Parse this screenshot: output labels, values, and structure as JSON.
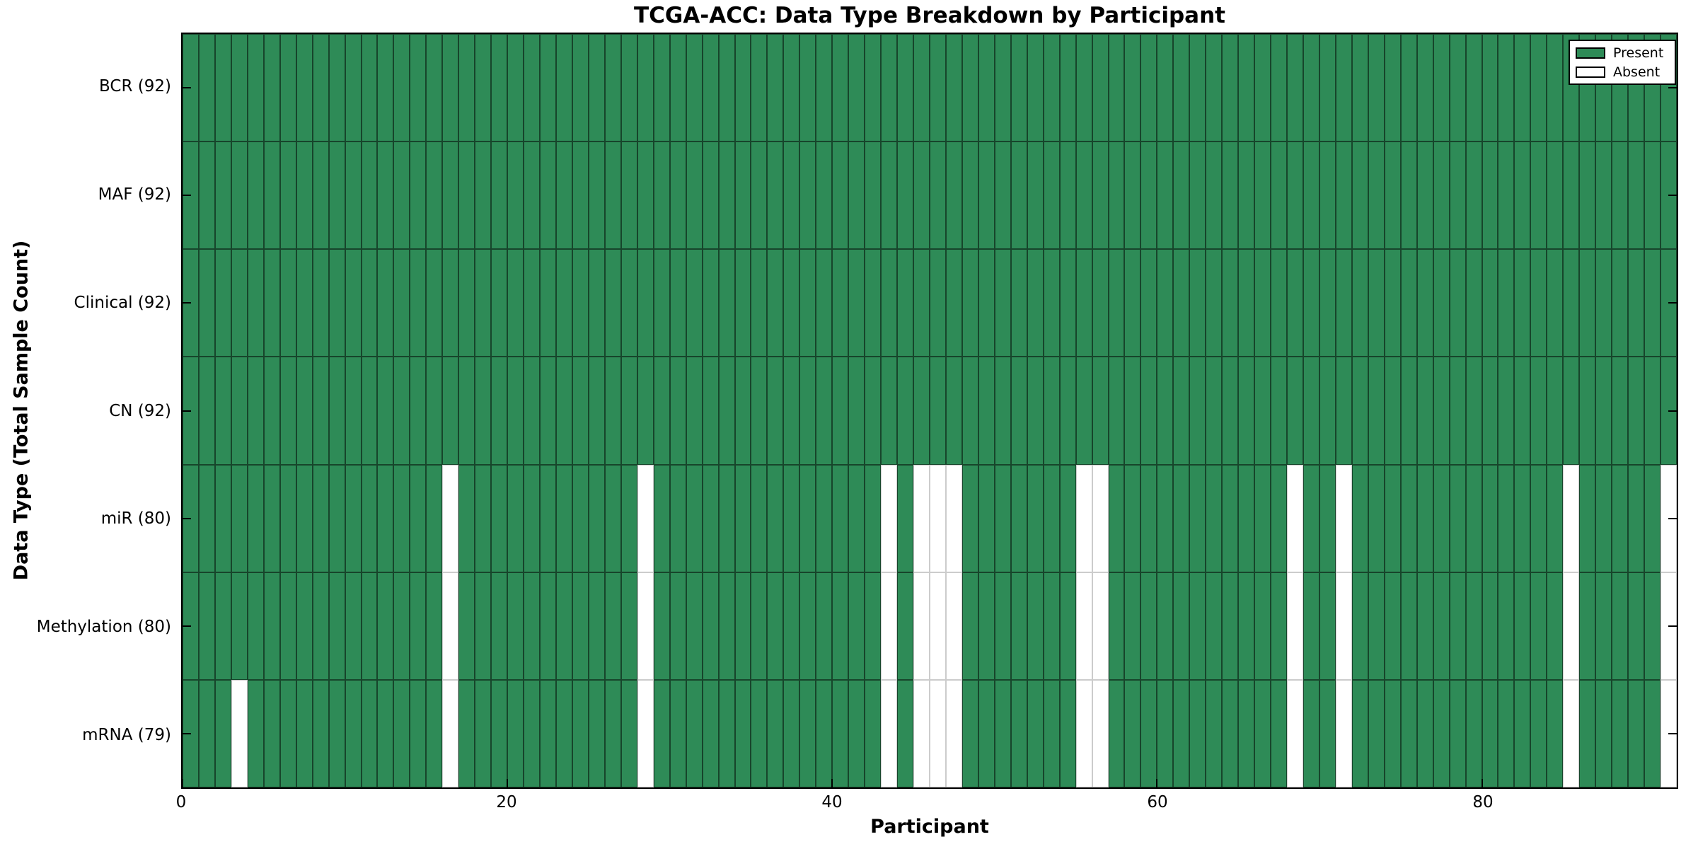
{
  "chart_data": {
    "type": "heatmap",
    "title": "TCGA-ACC: Data Type Breakdown by Participant",
    "xlabel": "Participant",
    "ylabel": "Data Type (Total Sample Count)",
    "x_ticks": [
      0,
      20,
      40,
      60,
      80
    ],
    "x_range": [
      0,
      92
    ],
    "n_participants": 92,
    "legend_position": "upper right",
    "legend": [
      {
        "label": "Present",
        "color": "#2e8b57"
      },
      {
        "label": "Absent",
        "color": "#ffffff"
      }
    ],
    "colors": {
      "present": "#2e8b57",
      "absent": "#ffffff",
      "present_cell_edge": "rgba(0,0,0,0.5)",
      "absent_cell_edge": "#cccccc",
      "axis": "#000000"
    },
    "rows": [
      {
        "label": "BCR (92)",
        "data_type": "BCR",
        "total_samples": 92,
        "absent_participants": []
      },
      {
        "label": "MAF (92)",
        "data_type": "MAF",
        "total_samples": 92,
        "absent_participants": []
      },
      {
        "label": "Clinical (92)",
        "data_type": "Clinical",
        "total_samples": 92,
        "absent_participants": []
      },
      {
        "label": "CN (92)",
        "data_type": "CN",
        "total_samples": 92,
        "absent_participants": []
      },
      {
        "label": "miR (80)",
        "data_type": "miR",
        "total_samples": 80,
        "absent_participants": [
          16,
          28,
          43,
          45,
          46,
          47,
          55,
          56,
          68,
          71,
          85,
          91
        ]
      },
      {
        "label": "Methylation (80)",
        "data_type": "Methylation",
        "total_samples": 80,
        "absent_participants": [
          16,
          28,
          43,
          45,
          46,
          47,
          55,
          56,
          68,
          71,
          85,
          91
        ]
      },
      {
        "label": "mRNA (79)",
        "data_type": "mRNA",
        "total_samples": 79,
        "absent_participants": [
          3,
          16,
          28,
          43,
          45,
          46,
          47,
          55,
          56,
          68,
          71,
          85,
          91
        ]
      }
    ]
  }
}
